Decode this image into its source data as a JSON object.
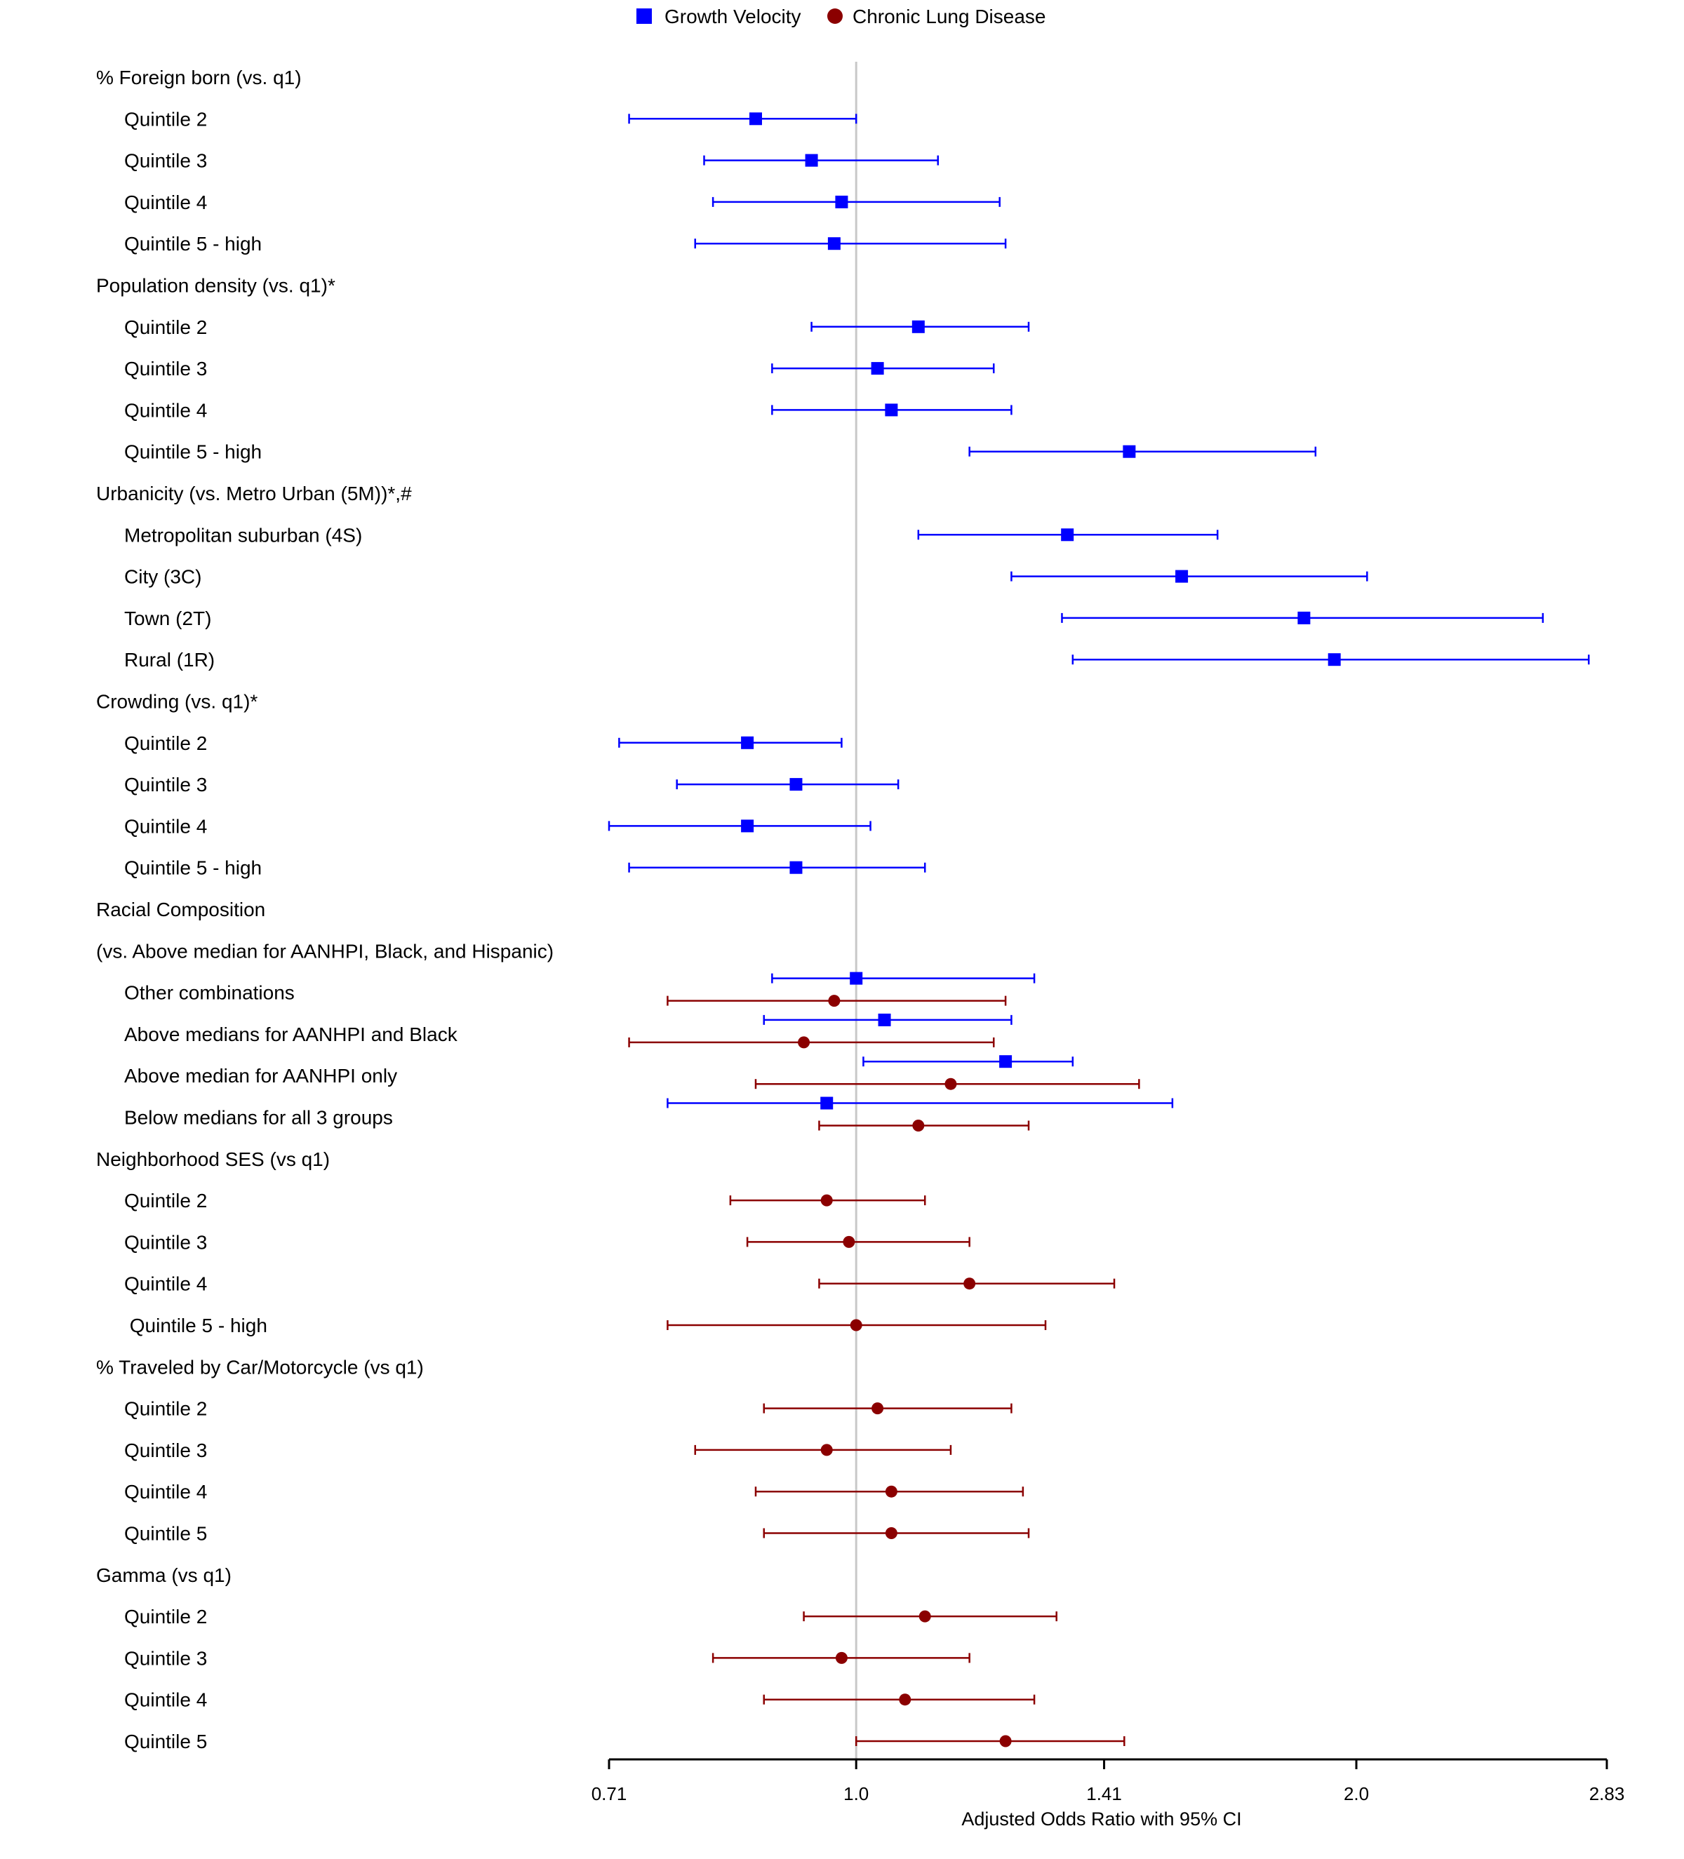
{
  "chart_data": {
    "type": "forest",
    "xlabel": "Adjusted Odds Ratio with 95% CI",
    "x_scale": "log2",
    "xlim": [
      0.71,
      2.83
    ],
    "x_ticks": [
      "0.71",
      "1.0",
      "1.41",
      "2.0",
      "2.83"
    ],
    "reference_line": 1.0,
    "legend_position": "top-center",
    "series": [
      {
        "name": "Growth Velocity",
        "color": "#0000ff",
        "marker": "square"
      },
      {
        "name": "Chronic Lung Disease",
        "color": "#8b0000",
        "marker": "circle"
      }
    ],
    "rows": [
      {
        "label": "% Foreign born (vs. q1)",
        "header": true
      },
      {
        "label": "Quintile 2",
        "points": [
          {
            "series": 0,
            "est": 0.87,
            "lo": 0.73,
            "hi": 1.0
          }
        ]
      },
      {
        "label": "Quintile 3",
        "points": [
          {
            "series": 0,
            "est": 0.94,
            "lo": 0.81,
            "hi": 1.12
          }
        ]
      },
      {
        "label": "Quintile 4",
        "points": [
          {
            "series": 0,
            "est": 0.98,
            "lo": 0.82,
            "hi": 1.22
          }
        ]
      },
      {
        "label": "Quintile 5 - high",
        "points": [
          {
            "series": 0,
            "est": 0.97,
            "lo": 0.8,
            "hi": 1.23
          }
        ]
      },
      {
        "label": "Population density (vs. q1)*",
        "header": true
      },
      {
        "label": "Quintile 2",
        "points": [
          {
            "series": 0,
            "est": 1.09,
            "lo": 0.94,
            "hi": 1.27
          }
        ]
      },
      {
        "label": "Quintile 3",
        "points": [
          {
            "series": 0,
            "est": 1.03,
            "lo": 0.89,
            "hi": 1.21
          }
        ]
      },
      {
        "label": "Quintile 4",
        "points": [
          {
            "series": 0,
            "est": 1.05,
            "lo": 0.89,
            "hi": 1.24
          }
        ]
      },
      {
        "label": "Quintile 5 - high",
        "points": [
          {
            "series": 0,
            "est": 1.46,
            "lo": 1.17,
            "hi": 1.89
          }
        ]
      },
      {
        "label": "Urbanicity (vs. Metro Urban (5M))*,#",
        "header": true
      },
      {
        "label": "Metropolitan suburban (4S)",
        "points": [
          {
            "series": 0,
            "est": 1.34,
            "lo": 1.09,
            "hi": 1.65
          }
        ]
      },
      {
        "label": "City (3C)",
        "points": [
          {
            "series": 0,
            "est": 1.57,
            "lo": 1.24,
            "hi": 2.03
          }
        ]
      },
      {
        "label": "Town (2T)",
        "points": [
          {
            "series": 0,
            "est": 1.86,
            "lo": 1.33,
            "hi": 2.59
          }
        ]
      },
      {
        "label": "Rural (1R)",
        "points": [
          {
            "series": 0,
            "est": 1.94,
            "lo": 1.35,
            "hi": 2.76
          }
        ]
      },
      {
        "label": "Crowding (vs. q1)*",
        "header": true
      },
      {
        "label": "Quintile 2",
        "points": [
          {
            "series": 0,
            "est": 0.86,
            "lo": 0.72,
            "hi": 0.98
          }
        ]
      },
      {
        "label": "Quintile 3",
        "points": [
          {
            "series": 0,
            "est": 0.92,
            "lo": 0.78,
            "hi": 1.06
          }
        ]
      },
      {
        "label": "Quintile 4",
        "points": [
          {
            "series": 0,
            "est": 0.86,
            "lo": 0.71,
            "hi": 1.02
          }
        ]
      },
      {
        "label": "Quintile 5 - high",
        "points": [
          {
            "series": 0,
            "est": 0.92,
            "lo": 0.73,
            "hi": 1.1
          }
        ]
      },
      {
        "label": "Racial Composition",
        "header": true
      },
      {
        "label": "(vs. Above median for AANHPI, Black, and Hispanic)",
        "header": true
      },
      {
        "label": "Other combinations",
        "points": [
          {
            "series": 0,
            "est": 1.0,
            "lo": 0.89,
            "hi": 1.28
          },
          {
            "series": 1,
            "est": 0.97,
            "lo": 0.77,
            "hi": 1.23
          }
        ]
      },
      {
        "label": "Above medians for AANHPI and Black",
        "points": [
          {
            "series": 0,
            "est": 1.04,
            "lo": 0.88,
            "hi": 1.24
          },
          {
            "series": 1,
            "est": 0.93,
            "lo": 0.73,
            "hi": 1.21
          }
        ]
      },
      {
        "label": "Above median for AANHPI only",
        "points": [
          {
            "series": 0,
            "est": 1.23,
            "lo": 1.01,
            "hi": 1.35
          },
          {
            "series": 1,
            "est": 1.14,
            "lo": 0.87,
            "hi": 1.48
          }
        ]
      },
      {
        "label": "Below medians for all 3 groups",
        "points": [
          {
            "series": 0,
            "est": 0.96,
            "lo": 0.77,
            "hi": 1.55
          },
          {
            "series": 1,
            "est": 1.09,
            "lo": 0.95,
            "hi": 1.27
          }
        ]
      },
      {
        "label": "Neighborhood SES (vs q1)",
        "header": true
      },
      {
        "label": "Quintile 2",
        "points": [
          {
            "series": 1,
            "est": 0.96,
            "lo": 0.84,
            "hi": 1.1
          }
        ]
      },
      {
        "label": "Quintile 3",
        "points": [
          {
            "series": 1,
            "est": 0.99,
            "lo": 0.86,
            "hi": 1.17
          }
        ]
      },
      {
        "label": "Quintile 4",
        "points": [
          {
            "series": 1,
            "est": 1.17,
            "lo": 0.95,
            "hi": 1.43
          }
        ]
      },
      {
        "label": " Quintile 5 - high",
        "points": [
          {
            "series": 1,
            "est": 1.0,
            "lo": 0.77,
            "hi": 1.3
          }
        ]
      },
      {
        "label": "% Traveled by Car/Motorcycle (vs q1)",
        "header": true
      },
      {
        "label": "Quintile 2",
        "points": [
          {
            "series": 1,
            "est": 1.03,
            "lo": 0.88,
            "hi": 1.24
          }
        ]
      },
      {
        "label": "Quintile 3",
        "points": [
          {
            "series": 1,
            "est": 0.96,
            "lo": 0.8,
            "hi": 1.14
          }
        ]
      },
      {
        "label": "Quintile 4",
        "points": [
          {
            "series": 1,
            "est": 1.05,
            "lo": 0.87,
            "hi": 1.26
          }
        ]
      },
      {
        "label": "Quintile 5",
        "points": [
          {
            "series": 1,
            "est": 1.05,
            "lo": 0.88,
            "hi": 1.27
          }
        ]
      },
      {
        "label": "Gamma (vs q1)",
        "header": true
      },
      {
        "label": "Quintile 2",
        "points": [
          {
            "series": 1,
            "est": 1.1,
            "lo": 0.93,
            "hi": 1.32
          }
        ]
      },
      {
        "label": "Quintile 3",
        "points": [
          {
            "series": 1,
            "est": 0.98,
            "lo": 0.82,
            "hi": 1.17
          }
        ]
      },
      {
        "label": "Quintile 4",
        "points": [
          {
            "series": 1,
            "est": 1.07,
            "lo": 0.88,
            "hi": 1.28
          }
        ]
      },
      {
        "label": "Quintile 5",
        "points": [
          {
            "series": 1,
            "est": 1.23,
            "lo": 1.0,
            "hi": 1.45
          }
        ]
      }
    ]
  }
}
